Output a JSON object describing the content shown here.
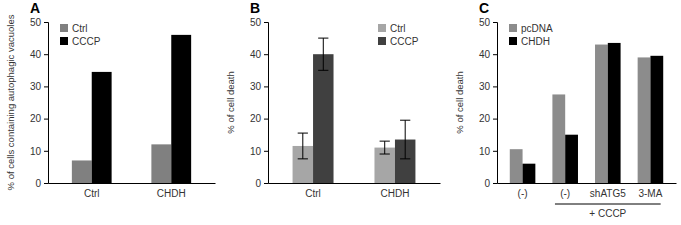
{
  "chart_data": [
    {
      "type": "bar",
      "title": "A",
      "y_label": "% of cells containing autophagic vacuoles",
      "categories": [
        "Ctrl",
        "CHDH"
      ],
      "series": [
        {
          "name": "Ctrl",
          "color": "#808080",
          "values": [
            7,
            12
          ]
        },
        {
          "name": "CCCP",
          "color": "#000000",
          "values": [
            34.5,
            46
          ]
        }
      ],
      "ylim": [
        0,
        50
      ],
      "yticks": [
        0,
        10,
        20,
        30,
        40,
        50
      ],
      "legend": "upper left"
    },
    {
      "type": "bar",
      "title": "B",
      "y_label": "% of cell death",
      "categories": [
        "Ctrl",
        "CHDH"
      ],
      "series": [
        {
          "name": "Ctrl",
          "color": "#a6a6a6",
          "values": [
            11.5,
            11
          ],
          "errors": [
            4,
            2
          ]
        },
        {
          "name": "CCCP",
          "color": "#404040",
          "values": [
            40,
            13.5
          ],
          "errors": [
            5,
            6
          ]
        }
      ],
      "ylim": [
        0,
        50
      ],
      "yticks": [
        0,
        10,
        20,
        30,
        40,
        50
      ],
      "legend": "upper right"
    },
    {
      "type": "bar",
      "title": "C",
      "y_label": "% of cell death",
      "categories": [
        "(-)",
        "(-)",
        "shATG5",
        "3-MA"
      ],
      "series": [
        {
          "name": "pcDNA",
          "color": "#8c8c8c",
          "values": [
            10.5,
            27.5,
            43,
            39
          ]
        },
        {
          "name": "CHDH",
          "color": "#000000",
          "values": [
            6,
            15,
            43.5,
            39.5
          ]
        }
      ],
      "ylim": [
        0,
        50
      ],
      "yticks": [
        0,
        10,
        20,
        30,
        40,
        50
      ],
      "legend": "upper left",
      "annotations": [
        {
          "text": "+ CCCP",
          "span": [
            1,
            3
          ]
        }
      ]
    }
  ]
}
